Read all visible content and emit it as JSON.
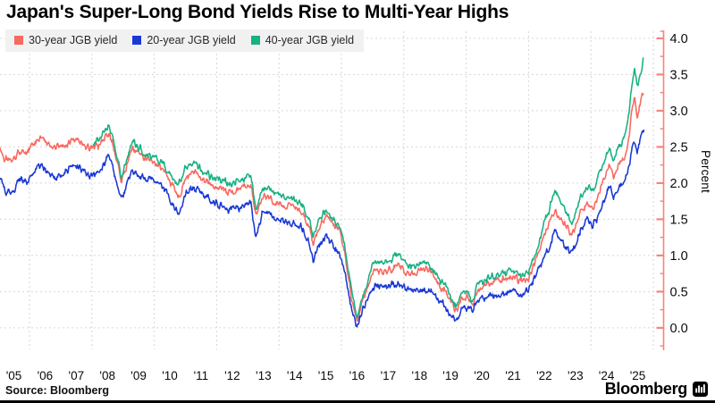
{
  "title": "Japan's Super-Long Bond Yields Rise to Multi-Year Highs",
  "footer": {
    "source": "Source: Bloomberg",
    "brand": "Bloomberg"
  },
  "chart_data": {
    "type": "line",
    "title": "Japan's Super-Long Bond Yields Rise to Multi-Year Highs",
    "xlabel": "",
    "ylabel": "Percent",
    "y_axis_side": "right",
    "legend_position": "top-left",
    "grid": true,
    "ylim": [
      -0.31,
      4.1
    ],
    "xlim_years": [
      2005.05,
      2026.3
    ],
    "y_ticks": [
      0.0,
      0.5,
      1.0,
      1.5,
      2.0,
      2.5,
      3.0,
      3.5,
      4.0
    ],
    "y_tick_labels": [
      "0.0",
      "0.5",
      "1.0",
      "1.5",
      "2.0",
      "2.5",
      "3.0",
      "3.5",
      "4.0"
    ],
    "y_minor_tick_step": 0.25,
    "x_tick_years": [
      2005,
      2006,
      2007,
      2008,
      2009,
      2010,
      2011,
      2012,
      2013,
      2014,
      2015,
      2016,
      2017,
      2018,
      2019,
      2020,
      2021,
      2022,
      2023,
      2024,
      2025
    ],
    "x_tick_labels": [
      "'05",
      "'06",
      "'07",
      "'08",
      "'09",
      "'10",
      "'11",
      "'12",
      "'13",
      "'14",
      "'15",
      "'16",
      "'17",
      "'18",
      "'19",
      "'20",
      "'21",
      "'22",
      "'23",
      "'24",
      "'25"
    ],
    "x_gridline_years": [
      2006,
      2008,
      2010,
      2012,
      2014,
      2016,
      2018,
      2020,
      2022,
      2024,
      2026
    ],
    "axis_color": "#f8837b",
    "grid_color": "#d6d6d6",
    "legend_bg": "#f1f1f2",
    "series": [
      {
        "name": "30-year JGB yield",
        "color": "#f8695f",
        "points": [
          [
            2005.05,
            2.48
          ],
          [
            2005.2,
            2.33
          ],
          [
            2005.45,
            2.31
          ],
          [
            2005.7,
            2.45
          ],
          [
            2005.9,
            2.42
          ],
          [
            2006.1,
            2.52
          ],
          [
            2006.35,
            2.62
          ],
          [
            2006.6,
            2.55
          ],
          [
            2006.85,
            2.48
          ],
          [
            2007.1,
            2.52
          ],
          [
            2007.4,
            2.62
          ],
          [
            2007.6,
            2.58
          ],
          [
            2007.9,
            2.5
          ],
          [
            2008.1,
            2.48
          ],
          [
            2008.35,
            2.58
          ],
          [
            2008.55,
            2.68
          ],
          [
            2008.75,
            2.4
          ],
          [
            2008.95,
            2.03
          ],
          [
            2009.1,
            2.2
          ],
          [
            2009.3,
            2.52
          ],
          [
            2009.5,
            2.42
          ],
          [
            2009.75,
            2.32
          ],
          [
            2010.0,
            2.28
          ],
          [
            2010.3,
            2.2
          ],
          [
            2010.55,
            1.98
          ],
          [
            2010.8,
            1.8
          ],
          [
            2011.0,
            2.05
          ],
          [
            2011.3,
            2.15
          ],
          [
            2011.55,
            2.05
          ],
          [
            2011.8,
            1.98
          ],
          [
            2012.1,
            1.95
          ],
          [
            2012.4,
            1.88
          ],
          [
            2012.7,
            1.92
          ],
          [
            2012.95,
            1.98
          ],
          [
            2013.1,
            2.0
          ],
          [
            2013.25,
            1.55
          ],
          [
            2013.45,
            1.8
          ],
          [
            2013.65,
            1.85
          ],
          [
            2013.85,
            1.73
          ],
          [
            2014.1,
            1.68
          ],
          [
            2014.4,
            1.68
          ],
          [
            2014.7,
            1.62
          ],
          [
            2014.95,
            1.42
          ],
          [
            2015.1,
            1.15
          ],
          [
            2015.3,
            1.42
          ],
          [
            2015.5,
            1.55
          ],
          [
            2015.75,
            1.42
          ],
          [
            2015.95,
            1.32
          ],
          [
            2016.1,
            1.05
          ],
          [
            2016.3,
            0.48
          ],
          [
            2016.5,
            0.08
          ],
          [
            2016.65,
            0.32
          ],
          [
            2016.85,
            0.58
          ],
          [
            2017.05,
            0.82
          ],
          [
            2017.3,
            0.78
          ],
          [
            2017.55,
            0.82
          ],
          [
            2017.8,
            0.88
          ],
          [
            2018.05,
            0.78
          ],
          [
            2018.3,
            0.73
          ],
          [
            2018.6,
            0.83
          ],
          [
            2018.85,
            0.8
          ],
          [
            2019.05,
            0.62
          ],
          [
            2019.3,
            0.52
          ],
          [
            2019.5,
            0.36
          ],
          [
            2019.68,
            0.25
          ],
          [
            2019.85,
            0.42
          ],
          [
            2020.05,
            0.42
          ],
          [
            2020.2,
            0.3
          ],
          [
            2020.4,
            0.55
          ],
          [
            2020.65,
            0.6
          ],
          [
            2020.9,
            0.64
          ],
          [
            2021.15,
            0.66
          ],
          [
            2021.45,
            0.7
          ],
          [
            2021.75,
            0.66
          ],
          [
            2022.0,
            0.7
          ],
          [
            2022.25,
            0.95
          ],
          [
            2022.5,
            1.28
          ],
          [
            2022.65,
            1.42
          ],
          [
            2022.82,
            1.62
          ],
          [
            2023.0,
            1.52
          ],
          [
            2023.2,
            1.38
          ],
          [
            2023.4,
            1.28
          ],
          [
            2023.65,
            1.6
          ],
          [
            2023.88,
            1.72
          ],
          [
            2024.05,
            1.65
          ],
          [
            2024.25,
            1.85
          ],
          [
            2024.5,
            2.15
          ],
          [
            2024.62,
            2.22
          ],
          [
            2024.72,
            2.05
          ],
          [
            2024.9,
            2.26
          ],
          [
            2025.05,
            2.32
          ],
          [
            2025.2,
            2.6
          ],
          [
            2025.32,
            3.0
          ],
          [
            2025.4,
            3.18
          ],
          [
            2025.48,
            2.92
          ],
          [
            2025.58,
            3.1
          ],
          [
            2025.68,
            3.28
          ]
        ]
      },
      {
        "name": "20-year JGB yield",
        "color": "#1a38d5",
        "points": [
          [
            2005.05,
            2.08
          ],
          [
            2005.2,
            1.88
          ],
          [
            2005.45,
            1.87
          ],
          [
            2005.7,
            2.05
          ],
          [
            2005.9,
            2.02
          ],
          [
            2006.1,
            2.12
          ],
          [
            2006.35,
            2.25
          ],
          [
            2006.6,
            2.15
          ],
          [
            2006.85,
            2.08
          ],
          [
            2007.1,
            2.12
          ],
          [
            2007.4,
            2.25
          ],
          [
            2007.6,
            2.22
          ],
          [
            2007.9,
            2.12
          ],
          [
            2008.1,
            2.1
          ],
          [
            2008.35,
            2.25
          ],
          [
            2008.55,
            2.4
          ],
          [
            2008.75,
            2.08
          ],
          [
            2008.95,
            1.78
          ],
          [
            2009.1,
            1.95
          ],
          [
            2009.3,
            2.18
          ],
          [
            2009.5,
            2.1
          ],
          [
            2009.75,
            2.06
          ],
          [
            2010.0,
            2.05
          ],
          [
            2010.3,
            1.95
          ],
          [
            2010.55,
            1.72
          ],
          [
            2010.8,
            1.57
          ],
          [
            2011.0,
            1.85
          ],
          [
            2011.3,
            1.95
          ],
          [
            2011.55,
            1.85
          ],
          [
            2011.8,
            1.75
          ],
          [
            2012.1,
            1.72
          ],
          [
            2012.4,
            1.63
          ],
          [
            2012.7,
            1.66
          ],
          [
            2012.95,
            1.72
          ],
          [
            2013.1,
            1.74
          ],
          [
            2013.25,
            1.22
          ],
          [
            2013.45,
            1.55
          ],
          [
            2013.65,
            1.62
          ],
          [
            2013.85,
            1.52
          ],
          [
            2014.1,
            1.48
          ],
          [
            2014.4,
            1.45
          ],
          [
            2014.7,
            1.38
          ],
          [
            2014.95,
            1.18
          ],
          [
            2015.1,
            0.92
          ],
          [
            2015.3,
            1.15
          ],
          [
            2015.5,
            1.25
          ],
          [
            2015.75,
            1.12
          ],
          [
            2015.95,
            1.02
          ],
          [
            2016.1,
            0.78
          ],
          [
            2016.3,
            0.32
          ],
          [
            2016.5,
            0.02
          ],
          [
            2016.65,
            0.22
          ],
          [
            2016.85,
            0.42
          ],
          [
            2017.05,
            0.58
          ],
          [
            2017.3,
            0.55
          ],
          [
            2017.55,
            0.57
          ],
          [
            2017.8,
            0.6
          ],
          [
            2018.05,
            0.54
          ],
          [
            2018.3,
            0.5
          ],
          [
            2018.6,
            0.53
          ],
          [
            2018.85,
            0.5
          ],
          [
            2019.05,
            0.4
          ],
          [
            2019.3,
            0.3
          ],
          [
            2019.5,
            0.2
          ],
          [
            2019.68,
            0.11
          ],
          [
            2019.85,
            0.25
          ],
          [
            2020.05,
            0.3
          ],
          [
            2020.2,
            0.2
          ],
          [
            2020.4,
            0.4
          ],
          [
            2020.65,
            0.41
          ],
          [
            2020.9,
            0.43
          ],
          [
            2021.15,
            0.46
          ],
          [
            2021.45,
            0.52
          ],
          [
            2021.75,
            0.46
          ],
          [
            2022.0,
            0.5
          ],
          [
            2022.25,
            0.75
          ],
          [
            2022.5,
            0.98
          ],
          [
            2022.65,
            1.08
          ],
          [
            2022.82,
            1.36
          ],
          [
            2023.0,
            1.25
          ],
          [
            2023.2,
            1.1
          ],
          [
            2023.4,
            1.02
          ],
          [
            2023.65,
            1.32
          ],
          [
            2023.88,
            1.52
          ],
          [
            2024.05,
            1.4
          ],
          [
            2024.25,
            1.55
          ],
          [
            2024.5,
            1.88
          ],
          [
            2024.62,
            1.95
          ],
          [
            2024.72,
            1.78
          ],
          [
            2024.9,
            1.93
          ],
          [
            2025.05,
            1.98
          ],
          [
            2025.2,
            2.22
          ],
          [
            2025.32,
            2.48
          ],
          [
            2025.4,
            2.6
          ],
          [
            2025.48,
            2.42
          ],
          [
            2025.58,
            2.58
          ],
          [
            2025.7,
            2.78
          ]
        ]
      },
      {
        "name": "40-year JGB yield",
        "color": "#18b183",
        "points": [
          [
            2008.05,
            2.52
          ],
          [
            2008.2,
            2.62
          ],
          [
            2008.4,
            2.72
          ],
          [
            2008.55,
            2.8
          ],
          [
            2008.75,
            2.45
          ],
          [
            2008.95,
            2.08
          ],
          [
            2009.1,
            2.3
          ],
          [
            2009.3,
            2.6
          ],
          [
            2009.5,
            2.5
          ],
          [
            2009.75,
            2.4
          ],
          [
            2010.0,
            2.36
          ],
          [
            2010.3,
            2.28
          ],
          [
            2010.55,
            2.08
          ],
          [
            2010.8,
            1.98
          ],
          [
            2011.0,
            2.2
          ],
          [
            2011.3,
            2.28
          ],
          [
            2011.55,
            2.18
          ],
          [
            2011.8,
            2.1
          ],
          [
            2012.1,
            2.06
          ],
          [
            2012.4,
            1.98
          ],
          [
            2012.7,
            2.02
          ],
          [
            2012.95,
            2.08
          ],
          [
            2013.1,
            2.1
          ],
          [
            2013.25,
            1.63
          ],
          [
            2013.45,
            1.9
          ],
          [
            2013.65,
            1.96
          ],
          [
            2013.85,
            1.86
          ],
          [
            2014.1,
            1.82
          ],
          [
            2014.4,
            1.8
          ],
          [
            2014.7,
            1.72
          ],
          [
            2014.95,
            1.52
          ],
          [
            2015.1,
            1.25
          ],
          [
            2015.3,
            1.52
          ],
          [
            2015.5,
            1.62
          ],
          [
            2015.75,
            1.5
          ],
          [
            2015.95,
            1.42
          ],
          [
            2016.1,
            1.15
          ],
          [
            2016.3,
            0.58
          ],
          [
            2016.5,
            0.1
          ],
          [
            2016.65,
            0.38
          ],
          [
            2016.85,
            0.65
          ],
          [
            2017.05,
            0.92
          ],
          [
            2017.3,
            0.88
          ],
          [
            2017.55,
            0.92
          ],
          [
            2017.8,
            1.0
          ],
          [
            2018.05,
            0.9
          ],
          [
            2018.3,
            0.84
          ],
          [
            2018.6,
            0.92
          ],
          [
            2018.85,
            0.88
          ],
          [
            2019.05,
            0.72
          ],
          [
            2019.3,
            0.6
          ],
          [
            2019.5,
            0.44
          ],
          [
            2019.68,
            0.3
          ],
          [
            2019.85,
            0.5
          ],
          [
            2020.05,
            0.5
          ],
          [
            2020.2,
            0.38
          ],
          [
            2020.4,
            0.63
          ],
          [
            2020.65,
            0.68
          ],
          [
            2020.9,
            0.72
          ],
          [
            2021.15,
            0.74
          ],
          [
            2021.45,
            0.78
          ],
          [
            2021.75,
            0.72
          ],
          [
            2022.0,
            0.76
          ],
          [
            2022.25,
            1.05
          ],
          [
            2022.5,
            1.45
          ],
          [
            2022.65,
            1.6
          ],
          [
            2022.82,
            1.9
          ],
          [
            2023.0,
            1.75
          ],
          [
            2023.2,
            1.58
          ],
          [
            2023.4,
            1.45
          ],
          [
            2023.65,
            1.8
          ],
          [
            2023.88,
            1.95
          ],
          [
            2024.05,
            1.88
          ],
          [
            2024.25,
            2.1
          ],
          [
            2024.5,
            2.38
          ],
          [
            2024.62,
            2.45
          ],
          [
            2024.72,
            2.28
          ],
          [
            2024.9,
            2.52
          ],
          [
            2025.05,
            2.58
          ],
          [
            2025.2,
            2.9
          ],
          [
            2025.32,
            3.4
          ],
          [
            2025.4,
            3.6
          ],
          [
            2025.48,
            3.32
          ],
          [
            2025.55,
            3.48
          ],
          [
            2025.62,
            3.58
          ],
          [
            2025.68,
            3.72
          ]
        ]
      }
    ]
  }
}
